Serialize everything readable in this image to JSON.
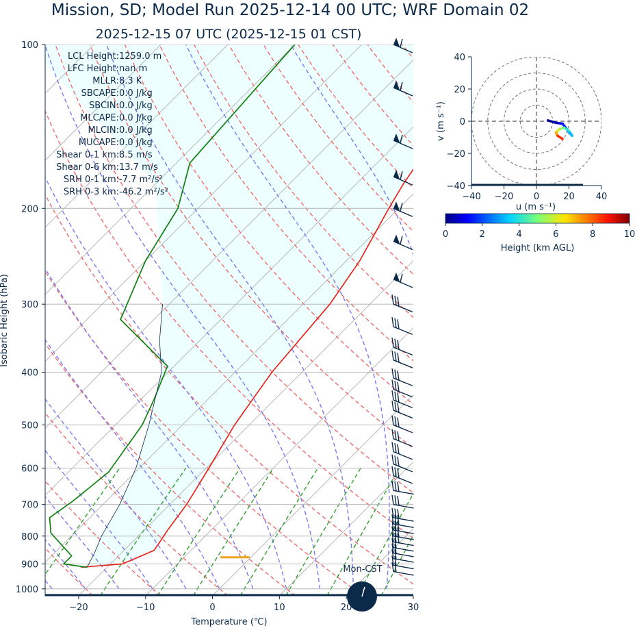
{
  "chart_data": [
    {
      "type": "line",
      "title": "Mission, SD; Model Run 2025-12-14 00 UTC; WRF Domain 02",
      "subtitle": "2025-12-15 07 UTC  (2025-12-15 01 CST)",
      "xlabel": "Temperature (℃)",
      "ylabel": "Isobaric Height (hPa)",
      "xlim": [
        -25,
        30
      ],
      "ylim": [
        1030,
        100
      ],
      "y_scale": "log",
      "x_ticks": [
        "−20",
        "−10",
        "0",
        "10",
        "20",
        "30"
      ],
      "x_tick_values": [
        -20,
        -10,
        0,
        10,
        20,
        30
      ],
      "y_ticks": [
        "100",
        "200",
        "300",
        "400",
        "500",
        "600",
        "700",
        "800",
        "900",
        "1000"
      ],
      "y_tick_values": [
        100,
        200,
        300,
        400,
        500,
        600,
        700,
        800,
        900,
        1000
      ],
      "grid": true,
      "skew": "skew-T",
      "series": [
        {
          "role": "temperature",
          "color": "#e8251c",
          "points": [
            [
              -23.9,
              913
            ],
            [
              -18.2,
              900
            ],
            [
              -15.5,
              850
            ],
            [
              -16.5,
              780
            ],
            [
              -17.5,
              700
            ],
            [
              -19.6,
              600
            ],
            [
              -22.2,
              500
            ],
            [
              -24.5,
              400
            ],
            [
              -26,
              300
            ],
            [
              -28,
              250
            ],
            [
              -31.5,
              200
            ],
            [
              -33,
              180
            ],
            [
              -35,
              150
            ],
            [
              -35.5,
              100
            ]
          ]
        },
        {
          "role": "dewpoint",
          "color": "#118011",
          "points": [
            [
              -23,
              913
            ],
            [
              -27,
              900
            ],
            [
              -27,
              870
            ],
            [
              -33.5,
              790
            ],
            [
              -36,
              740
            ],
            [
              -35,
              690
            ],
            [
              -34,
              610
            ],
            [
              -36,
              500
            ],
            [
              -38,
              450
            ],
            [
              -41,
              390
            ],
            [
              -55,
              320
            ],
            [
              -60,
              250
            ],
            [
              -63,
              200
            ],
            [
              -68,
              165
            ],
            [
              -70,
              100
            ]
          ]
        },
        {
          "role": "parcel-profile",
          "color": "#0b2a4a",
          "points": [
            [
              -23,
              913
            ],
            [
              -24,
              860
            ],
            [
              -25.5,
              800
            ],
            [
              -27.5,
              700
            ],
            [
              -30.5,
              600
            ],
            [
              -35,
              500
            ],
            [
              -41,
              400
            ],
            [
              -46,
              350
            ],
            [
              -51,
              300
            ]
          ]
        }
      ],
      "lcl_pressure_hpa": 875,
      "annotations": [
        "LCL Height: 1259.0 m",
        "LFC Height: nan m",
        "MLLR: 8.3 K",
        "SBCAPE: 0.0 J/kg",
        "SBCIN: 0.0 J/kg",
        "MLCAPE: 0.0 J/kg",
        "MLCIN: 0.0 J/kg",
        "MUCAPE: 0.0 J/kg",
        "Shear 0-1 km: 8.5 m/s",
        "Shear 0-6 km: 13.7 m/s",
        "SRH 0-1 km: -7.7 m²/s²",
        "SRH 0-3 km: -46.2 m²/s²"
      ],
      "wind_barbs_pressure_hpa": [
        100,
        120,
        150,
        175,
        200,
        230,
        270,
        300,
        330,
        360,
        380,
        410,
        430,
        450,
        470,
        500,
        530,
        560,
        590,
        620,
        660,
        700,
        740,
        760,
        780,
        800,
        820,
        840,
        860,
        880,
        905,
        930
      ],
      "moon_label": "Mon-CST",
      "colors": {
        "temperature": "#e8251c",
        "dewpoint": "#118011",
        "dry_adiabat": "#ef6b6b",
        "moist_adiabat": "#7a7af2",
        "mixing_ratio": "#2ea02e",
        "isotherm": "#b0b0b0",
        "shade": "#eeffff",
        "barb": "#0b2a4a",
        "lcl": "#f2a41c"
      }
    },
    {
      "type": "hodograph",
      "xlabel": "u (m s⁻¹)",
      "ylabel": "v (m s⁻¹)",
      "xlim": [
        -40,
        40
      ],
      "ylim": [
        -40,
        40
      ],
      "x_ticks": [
        "−40",
        "−20",
        "0",
        "20",
        "40"
      ],
      "x_tick_values": [
        -40,
        -20,
        0,
        20,
        40
      ],
      "y_ticks": [
        "40",
        "20",
        "0",
        "−20",
        "−40"
      ],
      "y_tick_values": [
        40,
        20,
        0,
        -20,
        -40
      ],
      "rings": [
        10,
        20,
        30,
        40
      ],
      "points": [
        [
          7,
          0.5,
          0
        ],
        [
          12,
          -1,
          0.5
        ],
        [
          16,
          -1.5,
          1
        ],
        [
          18,
          -4,
          1.8
        ],
        [
          20,
          -7,
          2.5
        ],
        [
          22,
          -9,
          3
        ],
        [
          20,
          -6,
          3.5
        ],
        [
          17,
          -4,
          4.5
        ],
        [
          14,
          -5,
          5.5
        ],
        [
          12,
          -7,
          6.5
        ],
        [
          13,
          -9,
          8
        ],
        [
          16,
          -11,
          9
        ]
      ],
      "colorbar_label": "Height (km AGL)",
      "colorbar_ticks": [
        "0",
        "2",
        "4",
        "6",
        "8",
        "10"
      ],
      "colorbar_tick_values": [
        0,
        2,
        4,
        6,
        8,
        10
      ],
      "colorbar_range": [
        0,
        10
      ],
      "colormap": "jet"
    }
  ]
}
